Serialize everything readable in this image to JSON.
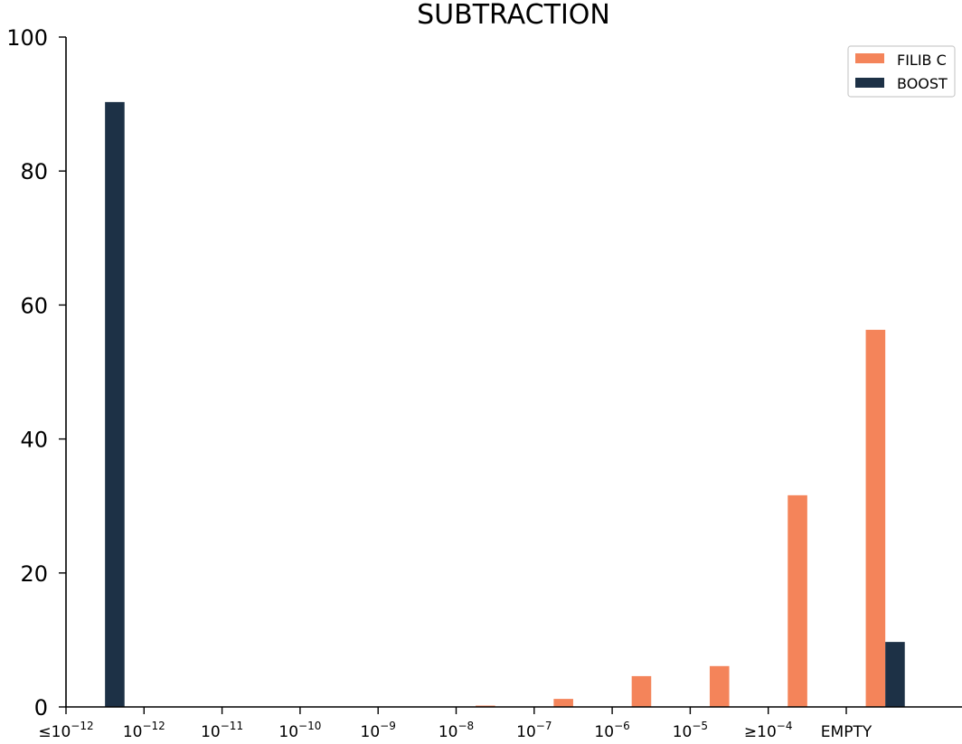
{
  "chart_data": {
    "type": "bar",
    "title": "SUBTRACTION",
    "xlabel": "",
    "ylabel": "",
    "ylim": [
      0,
      100
    ],
    "yticks": [
      "0",
      "20",
      "40",
      "60",
      "80",
      "100"
    ],
    "grid": false,
    "legend_position": "top-right",
    "categories": [
      {
        "base": "≤10",
        "exp": "−12"
      },
      {
        "base": "10",
        "exp": "−12"
      },
      {
        "base": "10",
        "exp": "−11"
      },
      {
        "base": "10",
        "exp": "−10"
      },
      {
        "base": "10",
        "exp": "−9"
      },
      {
        "base": "10",
        "exp": "−8"
      },
      {
        "base": "10",
        "exp": "−7"
      },
      {
        "base": "10",
        "exp": "−6"
      },
      {
        "base": "10",
        "exp": "−5"
      },
      {
        "base": "≥10",
        "exp": "−4"
      },
      {
        "base": "EMPTY",
        "exp": ""
      }
    ],
    "series": [
      {
        "name": "FILIB C",
        "color": "#f4845a",
        "values": [
          0,
          0,
          0,
          0,
          0,
          0.2,
          1.2,
          4.6,
          6.1,
          31.6,
          56.3
        ]
      },
      {
        "name": "BOOST",
        "color": "#1d3146",
        "values": [
          90.3,
          0,
          0,
          0,
          0,
          0,
          0,
          0,
          0,
          0,
          9.7
        ]
      }
    ]
  }
}
